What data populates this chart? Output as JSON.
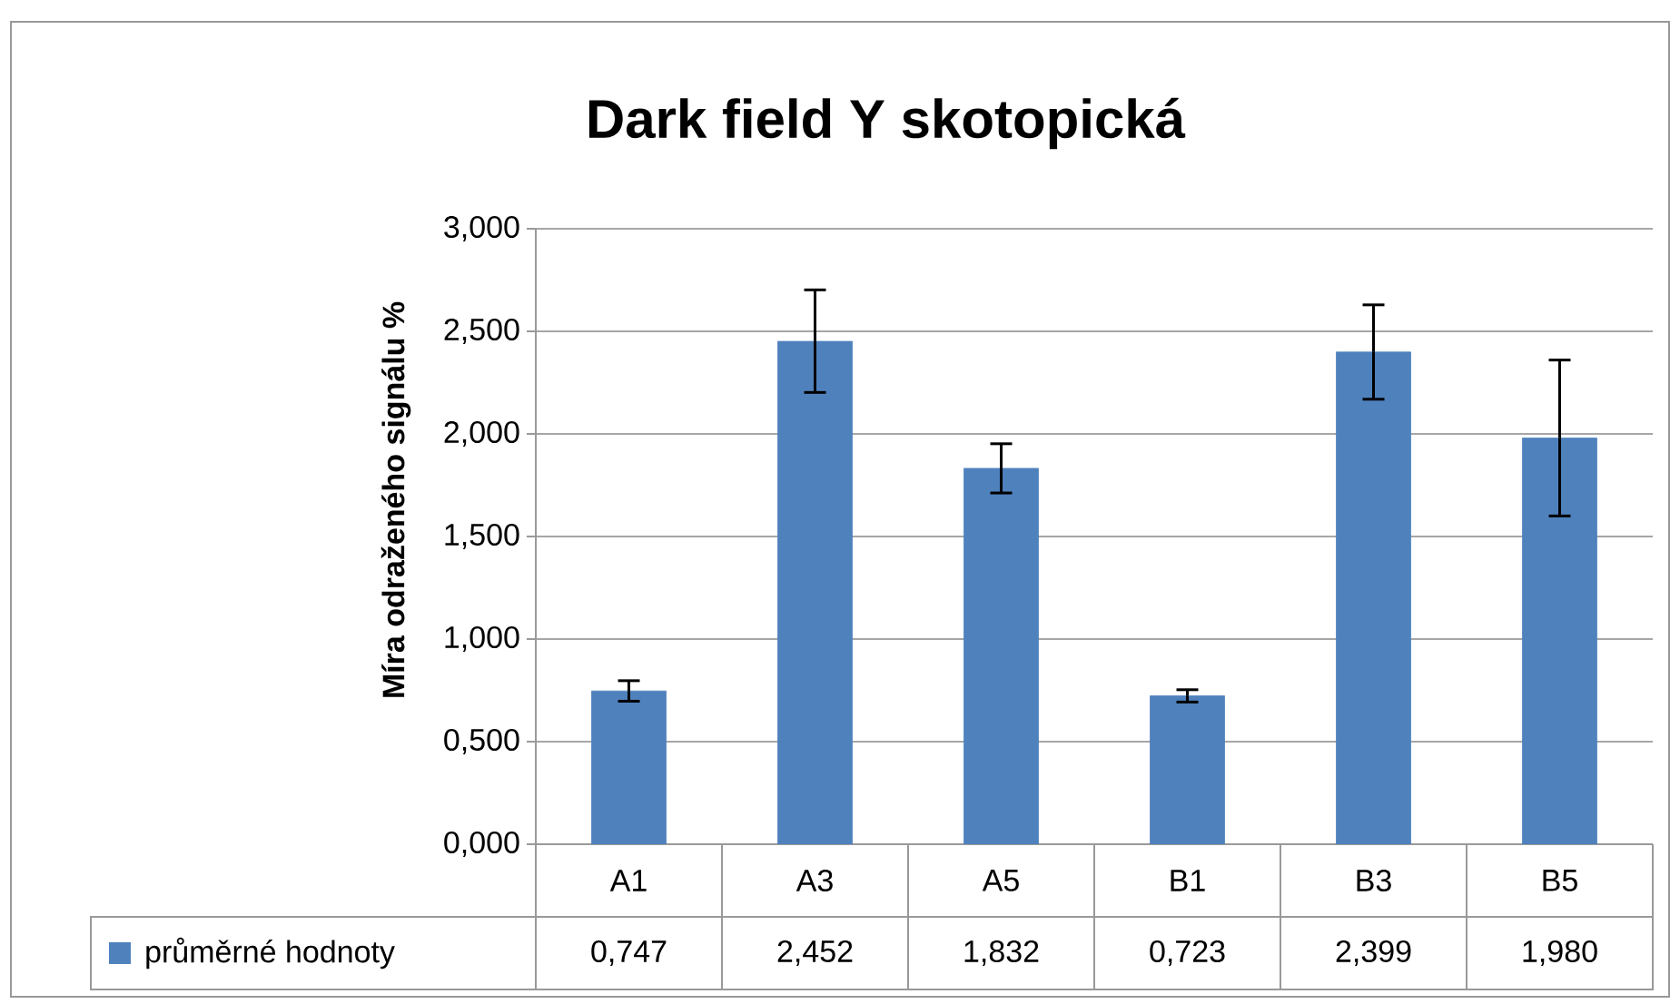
{
  "chart_data": {
    "type": "bar",
    "title": "Dark field Y skotopická",
    "ylabel": "Míra odraženého signálu %",
    "categories": [
      "A1",
      "A3",
      "A5",
      "B1",
      "B3",
      "B5"
    ],
    "series": [
      {
        "name": "průměrné hodnoty",
        "color": "#4f81bd",
        "values": [
          0.747,
          2.452,
          1.832,
          0.723,
          2.399,
          1.98
        ],
        "errors": [
          0.05,
          0.25,
          0.12,
          0.03,
          0.23,
          0.38
        ],
        "value_labels": [
          "0,747",
          "2,452",
          "1,832",
          "0,723",
          "2,399",
          "1,980"
        ]
      }
    ],
    "ylim": [
      0,
      3
    ],
    "yticks": [
      {
        "value": 0,
        "label": "0,000"
      },
      {
        "value": 0.5,
        "label": "0,500"
      },
      {
        "value": 1,
        "label": "1,000"
      },
      {
        "value": 1.5,
        "label": "1,500"
      },
      {
        "value": 2,
        "label": "2,000"
      },
      {
        "value": 2.5,
        "label": "2,500"
      },
      {
        "value": 3,
        "label": "3,000"
      }
    ],
    "grid": "y",
    "legend": "bottom"
  }
}
